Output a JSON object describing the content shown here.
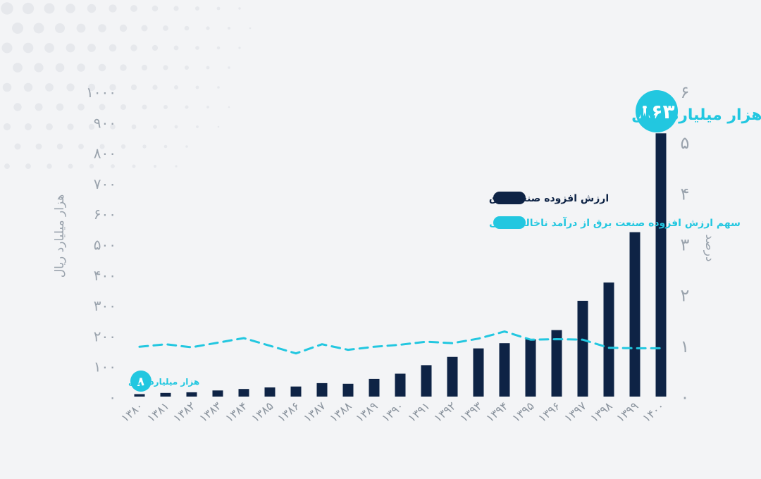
{
  "colors": {
    "bar": "#0e2345",
    "line": "#22c7e0",
    "axis_text": "#9aa3ad",
    "background": "#f3f4f6"
  },
  "chart_data": {
    "type": "bar",
    "categories": [
      "۱۳۸۰",
      "۱۳۸۱",
      "۱۳۸۲",
      "۱۳۸۳",
      "۱۳۸۴",
      "۱۳۸۵",
      "۱۳۸۶",
      "۱۳۸۷",
      "۱۳۸۸",
      "۱۳۸۹",
      "۱۳۹۰",
      "۱۳۹۱",
      "۱۳۹۲",
      "۱۳۹۳",
      "۱۳۹۴",
      "۱۳۹۵",
      "۱۳۹۶",
      "۱۳۹۷",
      "۱۳۹۸",
      "۱۳۹۹",
      "۱۴۰۰"
    ],
    "series": [
      {
        "name": "ارزش افزوده صنعت برق",
        "axis": "left",
        "type": "bar",
        "values": [
          8,
          12,
          14,
          20,
          25,
          30,
          33,
          44,
          42,
          58,
          75,
          103,
          130,
          158,
          175,
          188,
          218,
          314,
          374,
          539,
          863
        ]
      },
      {
        "name": "سهم ارزش افزوده صنعت برق از درآمد ناخالص ملی",
        "axis": "right",
        "type": "line",
        "style": "dashed",
        "values": [
          0.98,
          1.03,
          0.97,
          1.06,
          1.15,
          1.0,
          0.85,
          1.03,
          0.92,
          0.98,
          1.02,
          1.08,
          1.05,
          1.14,
          1.28,
          1.12,
          1.13,
          1.12,
          0.96,
          0.95,
          0.95
        ]
      }
    ],
    "y_left": {
      "label": "هزار میلیارد ریال",
      "range": [
        0,
        1000
      ],
      "ticks": [
        "۰",
        "۱۰۰",
        "۲۰۰",
        "۳۰۰",
        "۴۰۰",
        "۵۰۰",
        "۶۰۰",
        "۷۰۰",
        "۸۰۰",
        "۹۰۰",
        "۱۰۰۰"
      ]
    },
    "y_right": {
      "label": "درصد",
      "range": [
        0,
        6
      ],
      "ticks": [
        "۰",
        "۱",
        "۲",
        "۳",
        "۴",
        "۵",
        "۶"
      ]
    },
    "legend_placement": "center-right",
    "grid": false,
    "annotations": {
      "last": {
        "value_label": "۸۶۳",
        "unit": "هزار میلیارد ریال"
      },
      "first": {
        "value_label": "۸",
        "unit": "هزار میلیارد ریال"
      }
    }
  }
}
